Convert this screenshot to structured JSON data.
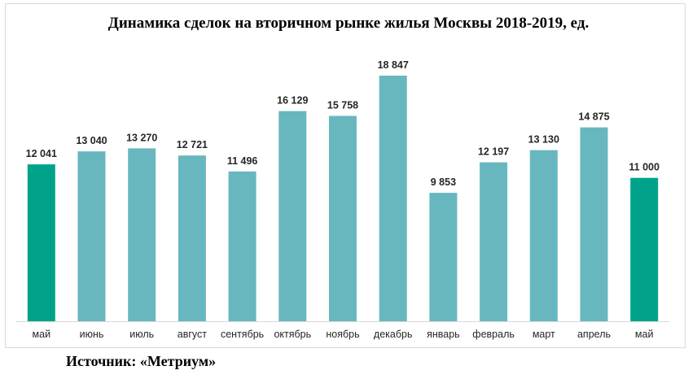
{
  "chart_data": {
    "type": "bar",
    "title": "Динамика сделок на вторичном рынке жилья Москвы 2018-2019, ед.",
    "categories": [
      "май",
      "июнь",
      "июль",
      "август",
      "сентябрь",
      "октябрь",
      "ноябрь",
      "декабрь",
      "январь",
      "февраль",
      "март",
      "апрель",
      "май"
    ],
    "values": [
      12041,
      13040,
      13270,
      12721,
      11496,
      16129,
      15758,
      18847,
      9853,
      12197,
      13130,
      14875,
      11000
    ],
    "value_labels": [
      "12 041",
      "13 040",
      "13 270",
      "12 721",
      "11 496",
      "16 129",
      "15 758",
      "18 847",
      "9 853",
      "12 197",
      "13 130",
      "14 875",
      "11 000"
    ],
    "highlight_indices": [
      0,
      12
    ],
    "xlabel": "",
    "ylabel": "",
    "ylim": [
      0,
      20000
    ],
    "grid": false,
    "legend": "none",
    "colors": {
      "bar": "#68b7bf",
      "highlight": "#00a38a",
      "axis": "#d9d9d9"
    }
  },
  "footer": {
    "source": "Источник: «Метриум»"
  }
}
